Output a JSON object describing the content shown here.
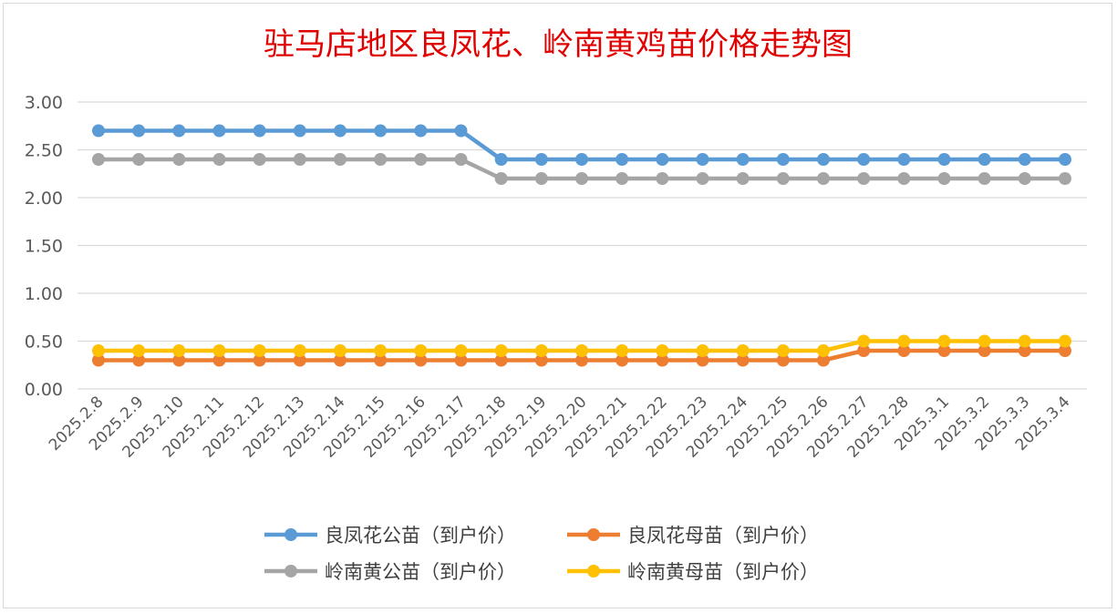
{
  "chart_data": {
    "type": "line",
    "title": "驻马店地区良凤花、岭南黄鸡苗价格走势图",
    "xlabel": "",
    "ylabel": "",
    "ylim": [
      0,
      3.0
    ],
    "yticks": [
      "0.00",
      "0.50",
      "1.00",
      "1.50",
      "2.00",
      "2.50",
      "3.00"
    ],
    "grid": true,
    "legend_position": "bottom",
    "categories": [
      "2025.2.8",
      "2025.2.9",
      "2025.2.10",
      "2025.2.11",
      "2025.2.12",
      "2025.2.13",
      "2025.2.14",
      "2025.2.15",
      "2025.2.16",
      "2025.2.17",
      "2025.2.18",
      "2025.2.19",
      "2025.2.20",
      "2025.2.21",
      "2025.2.22",
      "2025.2.23",
      "2025.2.24",
      "2025.2.25",
      "2025.2.26",
      "2025.2.27",
      "2025.2.28",
      "2025.3.1",
      "2025.3.2",
      "2025.3.3",
      "2025.3.4"
    ],
    "series": [
      {
        "name": "良凤花公苗（到户价）",
        "color": "#5b9bd5",
        "values": [
          2.7,
          2.7,
          2.7,
          2.7,
          2.7,
          2.7,
          2.7,
          2.7,
          2.7,
          2.7,
          2.4,
          2.4,
          2.4,
          2.4,
          2.4,
          2.4,
          2.4,
          2.4,
          2.4,
          2.4,
          2.4,
          2.4,
          2.4,
          2.4,
          2.4
        ]
      },
      {
        "name": "良凤花母苗（到户价）",
        "color": "#ed7d31",
        "values": [
          0.3,
          0.3,
          0.3,
          0.3,
          0.3,
          0.3,
          0.3,
          0.3,
          0.3,
          0.3,
          0.3,
          0.3,
          0.3,
          0.3,
          0.3,
          0.3,
          0.3,
          0.3,
          0.3,
          0.4,
          0.4,
          0.4,
          0.4,
          0.4,
          0.4
        ]
      },
      {
        "name": "岭南黄公苗（到户价）",
        "color": "#a5a5a5",
        "values": [
          2.4,
          2.4,
          2.4,
          2.4,
          2.4,
          2.4,
          2.4,
          2.4,
          2.4,
          2.4,
          2.2,
          2.2,
          2.2,
          2.2,
          2.2,
          2.2,
          2.2,
          2.2,
          2.2,
          2.2,
          2.2,
          2.2,
          2.2,
          2.2,
          2.2
        ]
      },
      {
        "name": "岭南黄母苗（到户价）",
        "color": "#ffc000",
        "values": [
          0.4,
          0.4,
          0.4,
          0.4,
          0.4,
          0.4,
          0.4,
          0.4,
          0.4,
          0.4,
          0.4,
          0.4,
          0.4,
          0.4,
          0.4,
          0.4,
          0.4,
          0.4,
          0.4,
          0.5,
          0.5,
          0.5,
          0.5,
          0.5,
          0.5
        ]
      }
    ]
  }
}
